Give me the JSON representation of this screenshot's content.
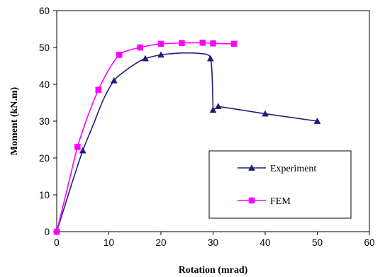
{
  "chart_data": {
    "type": "line",
    "xlabel": "Rotation (mrad)",
    "ylabel": "Moment (kN.m)",
    "xlim": [
      0,
      60
    ],
    "ylim": [
      0,
      60
    ],
    "xticks": [
      0,
      10,
      20,
      30,
      40,
      50,
      60
    ],
    "yticks": [
      0,
      10,
      20,
      30,
      40,
      50,
      60
    ],
    "grid": false,
    "legend_position": "right-center",
    "series": [
      {
        "name": "Experiment",
        "color": "#1f1f7a",
        "marker": "triangle",
        "x": [
          0,
          5,
          11,
          17,
          20,
          29.5,
          30,
          31,
          40,
          50
        ],
        "y": [
          0,
          22,
          41,
          47,
          48,
          47,
          33,
          34,
          32,
          30
        ],
        "curve_x": [
          0,
          1,
          2,
          3,
          5,
          7,
          9,
          11,
          13,
          15,
          17,
          20,
          22,
          24,
          26,
          28,
          29,
          29.5,
          29.8,
          30,
          31,
          40,
          50
        ],
        "curve_y": [
          0,
          4.5,
          9,
          13.5,
          22,
          29,
          36,
          41,
          43.5,
          45.5,
          47,
          48,
          48.3,
          48.5,
          48.5,
          48.3,
          48,
          47,
          43,
          33,
          34,
          32,
          30
        ]
      },
      {
        "name": "FEM",
        "color": "#ff00ff",
        "marker": "square",
        "x": [
          0,
          4,
          8,
          12,
          16,
          20,
          24,
          28,
          30,
          34
        ],
        "y": [
          0,
          23,
          38.5,
          48,
          50,
          51,
          51.2,
          51.3,
          51.1,
          51
        ],
        "curve_x": [
          0,
          2,
          4,
          6,
          8,
          10,
          12,
          14,
          16,
          18,
          20,
          24,
          28,
          30,
          34
        ],
        "curve_y": [
          0,
          11.5,
          23,
          31.5,
          38.5,
          44,
          48,
          49.3,
          50,
          50.6,
          51,
          51.2,
          51.3,
          51.1,
          51
        ]
      }
    ]
  }
}
